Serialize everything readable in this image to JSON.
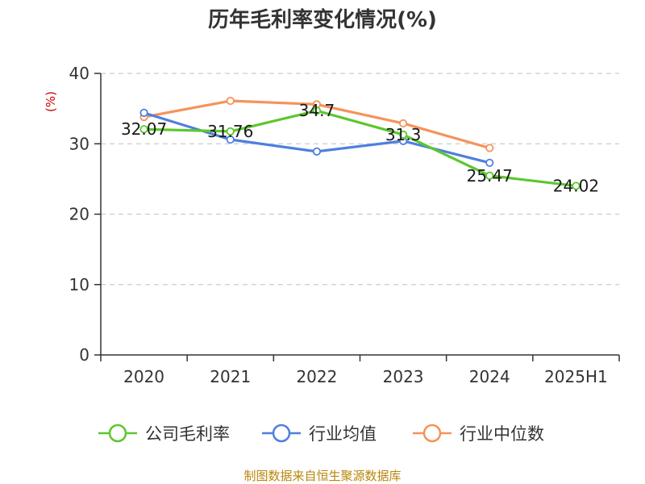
{
  "chart_data": {
    "type": "line",
    "title": "历年毛利率变化情况(%)",
    "unit_label": "(%)",
    "categories": [
      "2020",
      "2021",
      "2022",
      "2023",
      "2024",
      "2025H1"
    ],
    "ylim": [
      0,
      40
    ],
    "yticks": [
      "0",
      "10",
      "20",
      "30",
      "40"
    ],
    "grid": true,
    "legend_position": "bottom",
    "series": [
      {
        "name": "公司毛利率",
        "color": "#5cc72d",
        "values": [
          32.07,
          31.76,
          34.7,
          31.3,
          25.47,
          24.02
        ],
        "labels": [
          "32.07",
          "31.76",
          "34.7",
          "31.3",
          "25.47",
          "24.02"
        ]
      },
      {
        "name": "行业均值",
        "color": "#4f7fde",
        "values": [
          34.4,
          30.6,
          28.9,
          30.4,
          27.3,
          null
        ]
      },
      {
        "name": "行业中位数",
        "color": "#f5935b",
        "values": [
          33.8,
          36.1,
          35.6,
          32.9,
          29.4,
          null
        ]
      }
    ]
  },
  "source": "制图数据来自恒生聚源数据库"
}
